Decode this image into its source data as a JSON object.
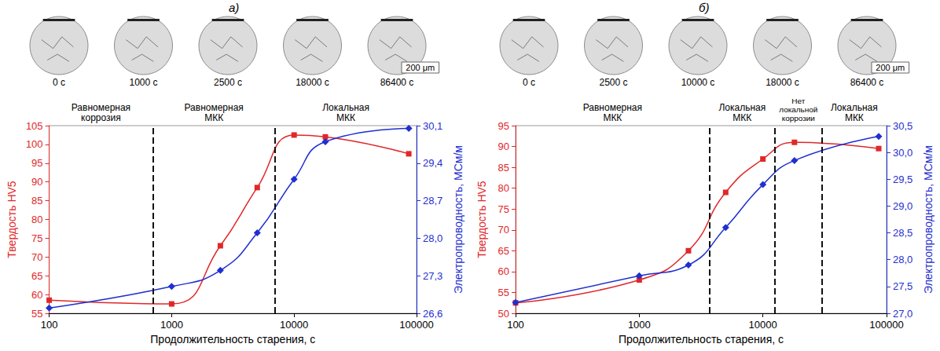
{
  "chart_data": [
    {
      "type": "line",
      "title": "а)",
      "micrographs": [
        "0 с",
        "1000 с",
        "2500 с",
        "18000 с",
        "86400 с"
      ],
      "scale_bar": "200 μm",
      "x_label": "Продолжительность старения, с",
      "y_label": "Твердость HV5",
      "y2_label": "Электропроводность, МСм/м",
      "log": "x",
      "grid": false,
      "xlim": [
        100,
        100000
      ],
      "xticks": [
        100,
        1000,
        10000,
        100000
      ],
      "ylim": [
        55,
        105
      ],
      "yticks": [
        55,
        60,
        65,
        70,
        75,
        80,
        85,
        90,
        95,
        100,
        105
      ],
      "y2lim": [
        26.6,
        30.1
      ],
      "y2ticks": [
        {
          "value": 26.6,
          "label": "26,6"
        },
        {
          "value": 27.3,
          "label": "27,3"
        },
        {
          "value": 28.0,
          "label": "28,0"
        },
        {
          "value": 28.7,
          "label": "28,7"
        },
        {
          "value": 29.4,
          "label": "29,4"
        },
        {
          "value": 30.1,
          "label": "30,1"
        }
      ],
      "x": [
        100,
        1000,
        2500,
        5000,
        10000,
        18000,
        86400
      ],
      "series": [
        {
          "color": "#e0282a",
          "marker": "square",
          "line_style": "solid",
          "values": [
            58.5,
            57.5,
            73,
            88.5,
            102.5,
            102,
            97.5
          ]
        },
        {
          "color": "#1f2fd0",
          "marker": "diamond",
          "line_style": "solid",
          "axis": "y2",
          "values": [
            26.7,
            27.1,
            27.4,
            28.1,
            29.1,
            29.8,
            30.05
          ]
        }
      ],
      "regions": {
        "boundaries": [
          700,
          7000
        ],
        "labels": [
          "Равномерная коррозия",
          "Равномерная МКК",
          "Локальная МКК"
        ]
      }
    },
    {
      "type": "line",
      "title": "б)",
      "micrographs": [
        "0 с",
        "2500 с",
        "10000 с",
        "18000 с",
        "86400 с"
      ],
      "scale_bar": "200 μm",
      "x_label": "Продолжительность старения, с",
      "y_label": "Твердость HV5",
      "y2_label": "Электропроводность, МСм/м",
      "log": "x",
      "grid": false,
      "xlim": [
        100,
        100000
      ],
      "xticks": [
        100,
        1000,
        10000,
        100000
      ],
      "ylim": [
        50,
        95
      ],
      "yticks": [
        50,
        55,
        60,
        65,
        70,
        75,
        80,
        85,
        90,
        95
      ],
      "y2lim": [
        27.0,
        30.5
      ],
      "y2ticks": [
        {
          "value": 27.0,
          "label": "27,0"
        },
        {
          "value": 27.5,
          "label": "27,5"
        },
        {
          "value": 28.0,
          "label": "28,0"
        },
        {
          "value": 28.5,
          "label": "28,5"
        },
        {
          "value": 29.0,
          "label": "29,0"
        },
        {
          "value": 29.5,
          "label": "29,5"
        },
        {
          "value": 30.0,
          "label": "30,0"
        },
        {
          "value": 30.5,
          "label": "30,5"
        }
      ],
      "x": [
        100,
        1000,
        2500,
        5000,
        10000,
        18000,
        86400
      ],
      "series": [
        {
          "color": "#e0282a",
          "marker": "square",
          "line_style": "solid",
          "values": [
            52.5,
            58,
            65,
            79,
            87,
            91,
            89.5
          ]
        },
        {
          "color": "#1f2fd0",
          "marker": "diamond",
          "line_style": "solid",
          "axis": "y2",
          "values": [
            27.2,
            27.7,
            27.9,
            28.6,
            29.4,
            29.85,
            30.3
          ]
        }
      ],
      "regions": {
        "boundaries": [
          3700,
          12500,
          30000
        ],
        "labels": [
          "Равномерная МКК",
          "Локальная МКК",
          "Нет локальной коррозии",
          "Локальная МКК"
        ]
      }
    }
  ]
}
